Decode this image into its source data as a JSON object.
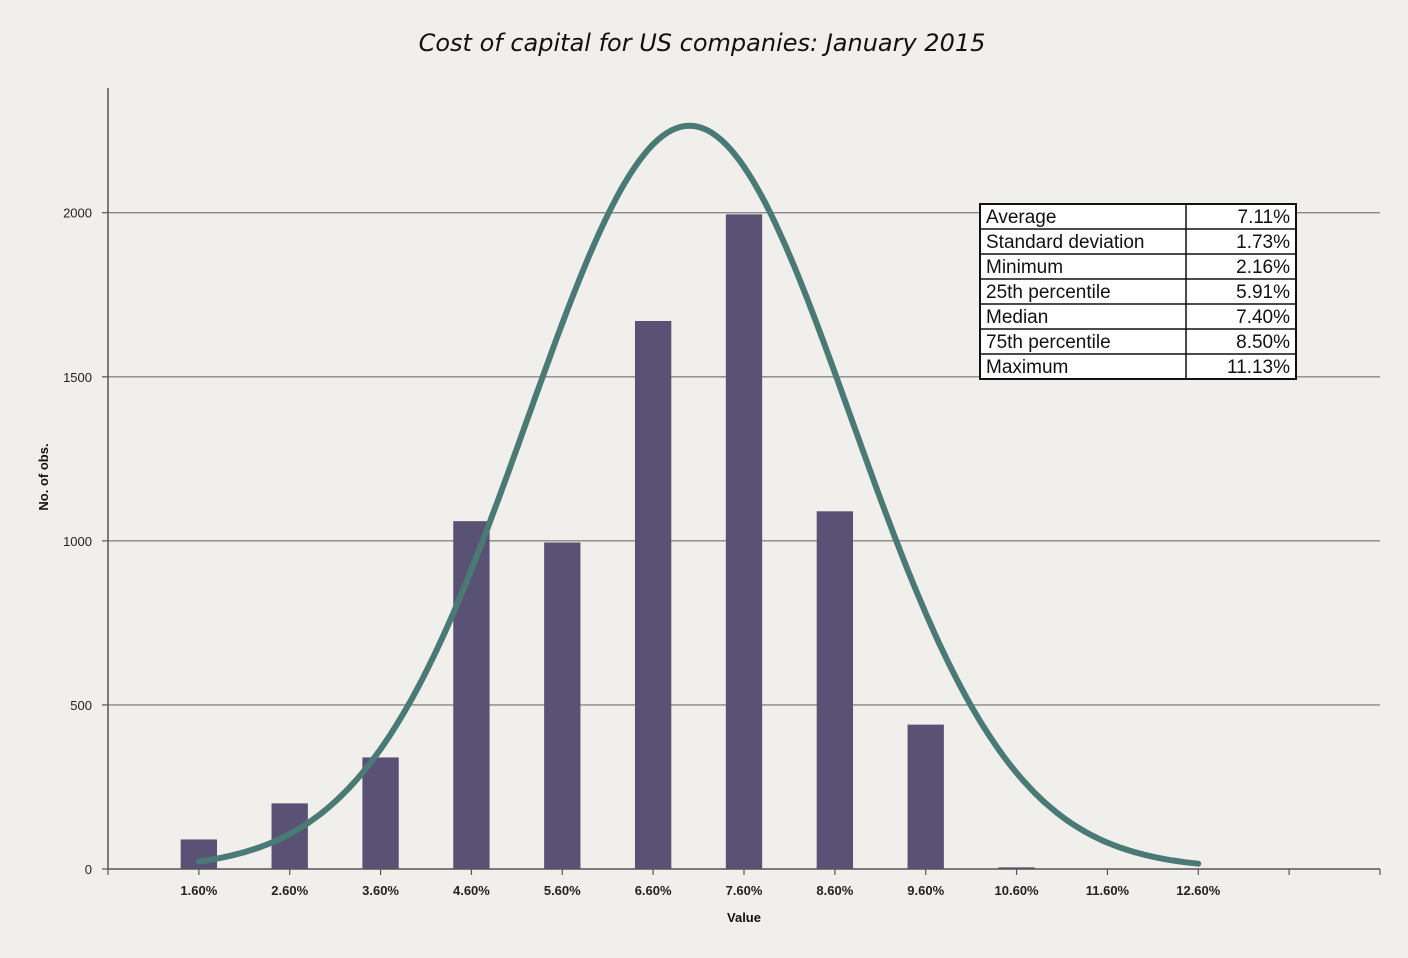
{
  "chart_data": {
    "type": "bar",
    "title": "Cost of capital for US companies: January 2015",
    "xlabel": "Value",
    "ylabel": "No. of obs.",
    "categories": [
      "1.60%",
      "2.60%",
      "3.60%",
      "4.60%",
      "5.60%",
      "6.60%",
      "7.60%",
      "8.60%",
      "9.60%",
      "10.60%",
      "11.60%",
      "12.60%"
    ],
    "x_values": [
      1.6,
      2.6,
      3.6,
      4.6,
      5.6,
      6.6,
      7.6,
      8.6,
      9.6,
      10.6,
      11.6,
      12.6
    ],
    "values": [
      90,
      200,
      340,
      1060,
      995,
      1670,
      1995,
      1090,
      440,
      5,
      0,
      0
    ],
    "yticks": [
      0,
      500,
      1000,
      1500,
      2000
    ],
    "ylim": [
      0,
      2380
    ],
    "xlim": [
      0.6,
      14.6
    ],
    "grid": true,
    "bar_color": "#5a5275",
    "curve": {
      "type": "normal-fit",
      "color": "#4a7a76",
      "x_range": [
        1.6,
        12.6
      ],
      "peak_x": 7.0,
      "peak_y": 2265,
      "sigma": 1.78
    },
    "stats_table": {
      "position": "top-right",
      "rows": [
        {
          "label": "Average",
          "value": "7.11%"
        },
        {
          "label": "Standard deviation",
          "value": "1.73%"
        },
        {
          "label": "Minimum",
          "value": "2.16%"
        },
        {
          "label": "25th percentile",
          "value": "5.91%"
        },
        {
          "label": "Median",
          "value": "7.40%"
        },
        {
          "label": "75th percentile",
          "value": "8.50%"
        },
        {
          "label": "Maximum",
          "value": "11.13%"
        }
      ]
    }
  }
}
